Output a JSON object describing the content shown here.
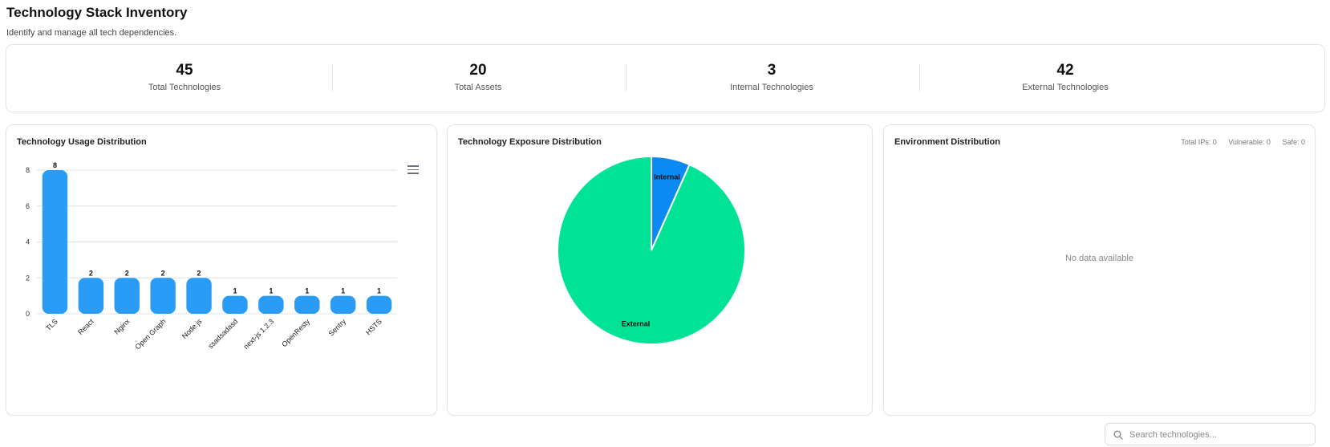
{
  "page": {
    "title": "Technology Stack Inventory",
    "subtitle": "Identify and manage all tech dependencies."
  },
  "stats": [
    {
      "value": "45",
      "label": "Total Technologies"
    },
    {
      "value": "20",
      "label": "Total Assets"
    },
    {
      "value": "3",
      "label": "Internal Technologies"
    },
    {
      "value": "42",
      "label": "External Technologies"
    }
  ],
  "usage_chart": {
    "title": "Technology Usage Distribution",
    "menu_icon": "hamburger-menu-icon"
  },
  "exposure_chart": {
    "title": "Technology Exposure Distribution"
  },
  "environment": {
    "title": "Environment Distribution",
    "total_ips": "Total IPs: 0",
    "vulnerable": "Vulnerable: 0",
    "safe": "Safe: 0",
    "empty_text": "No data available"
  },
  "search": {
    "placeholder": "Search technologies...",
    "icon": "search-icon"
  },
  "colors": {
    "bar": "#2b9cf6",
    "internal": "#0a8af2",
    "external": "#00e396"
  },
  "chart_data": [
    {
      "type": "bar",
      "title": "Technology Usage Distribution",
      "categories": [
        "TLS",
        "React",
        "Nginx",
        "Open Graph",
        "Node.js",
        "ssadsadasd",
        "next-js 1.2.3",
        "OpenResty",
        "Sentry",
        "HSTS"
      ],
      "values": [
        8,
        2,
        2,
        2,
        2,
        1,
        1,
        1,
        1,
        1
      ],
      "ylim": [
        0,
        8
      ],
      "yticks": [
        0,
        2,
        4,
        6,
        8
      ],
      "grid": true
    },
    {
      "type": "pie",
      "title": "Technology Exposure Distribution",
      "labels": [
        "Internal",
        "External"
      ],
      "values": [
        3,
        42
      ]
    }
  ]
}
